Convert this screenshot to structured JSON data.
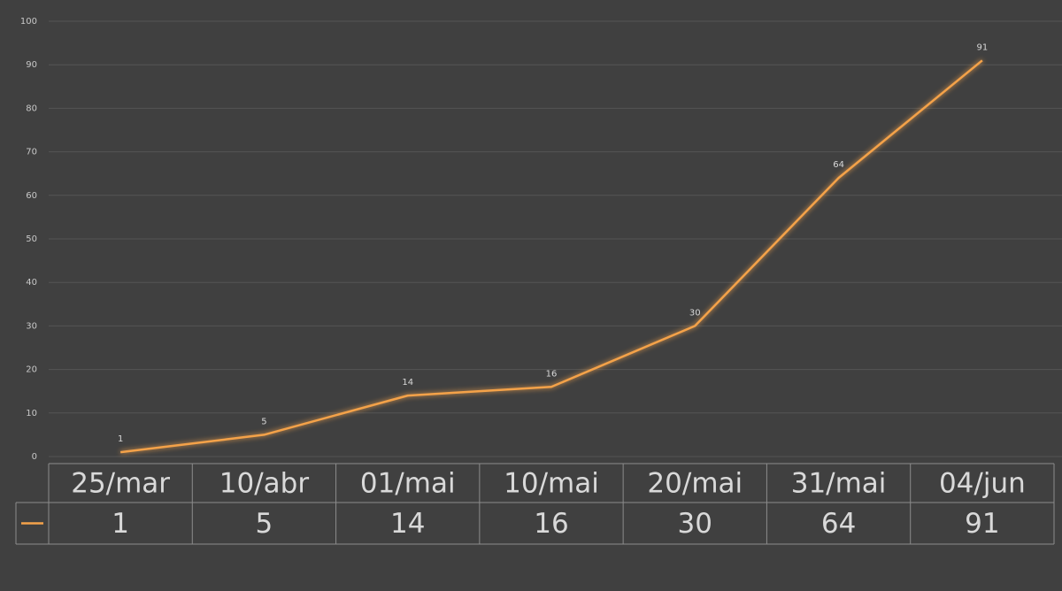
{
  "chart_data": {
    "type": "line",
    "categories": [
      "25/mar",
      "10/abr",
      "01/mai",
      "10/mai",
      "20/mai",
      "31/mai",
      "04/jun"
    ],
    "series": [
      {
        "color": "#f4a24a",
        "values": [
          1,
          5,
          14,
          16,
          30,
          64,
          91
        ]
      }
    ],
    "ylim": [
      0,
      100
    ],
    "yticks": [
      0,
      10,
      20,
      30,
      40,
      50,
      60,
      70,
      80,
      90,
      100
    ],
    "grid": true,
    "data_labels": true,
    "data_table": true
  }
}
